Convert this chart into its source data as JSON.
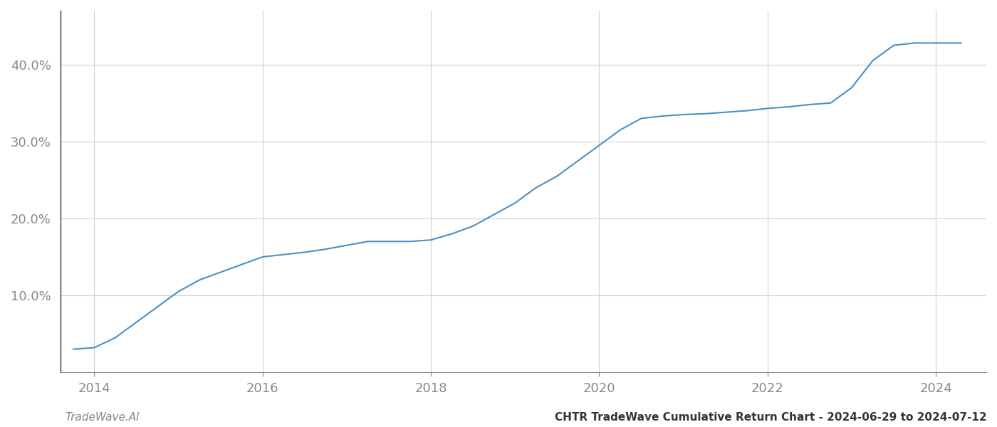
{
  "title": "",
  "footer_left": "TradeWave.AI",
  "footer_right": "CHTR TradeWave Cumulative Return Chart - 2024-06-29 to 2024-07-12",
  "line_color": "#4a90c4",
  "background_color": "#ffffff",
  "grid_color": "#d0d0d0",
  "x_years": [
    2013.75,
    2014.0,
    2014.25,
    2014.5,
    2014.75,
    2015.0,
    2015.25,
    2015.5,
    2015.75,
    2016.0,
    2016.25,
    2016.5,
    2016.75,
    2017.0,
    2017.25,
    2017.5,
    2017.75,
    2018.0,
    2018.25,
    2018.5,
    2018.75,
    2019.0,
    2019.25,
    2019.5,
    2019.75,
    2020.0,
    2020.25,
    2020.5,
    2020.75,
    2021.0,
    2021.25,
    2021.5,
    2021.75,
    2022.0,
    2022.25,
    2022.5,
    2022.75,
    2023.0,
    2023.25,
    2023.5,
    2023.75,
    2024.0,
    2024.3
  ],
  "y_values": [
    3.0,
    3.2,
    4.5,
    6.5,
    8.5,
    10.5,
    12.0,
    13.0,
    14.0,
    15.0,
    15.3,
    15.6,
    16.0,
    16.5,
    17.0,
    17.0,
    17.0,
    17.2,
    18.0,
    19.0,
    20.5,
    22.0,
    24.0,
    25.5,
    27.5,
    29.5,
    31.5,
    33.0,
    33.3,
    33.5,
    33.6,
    33.8,
    34.0,
    34.3,
    34.5,
    34.8,
    35.0,
    37.0,
    40.5,
    42.5,
    42.8,
    42.8,
    42.8
  ],
  "xlim": [
    2013.6,
    2024.6
  ],
  "ylim": [
    0,
    47
  ],
  "yticks": [
    10.0,
    20.0,
    30.0,
    40.0
  ],
  "xticks": [
    2014,
    2016,
    2018,
    2020,
    2022,
    2024
  ],
  "tick_label_color": "#888888",
  "left_spine_color": "#333333",
  "bottom_spine_color": "#888888",
  "footer_fontsize": 11,
  "tick_fontsize": 13
}
